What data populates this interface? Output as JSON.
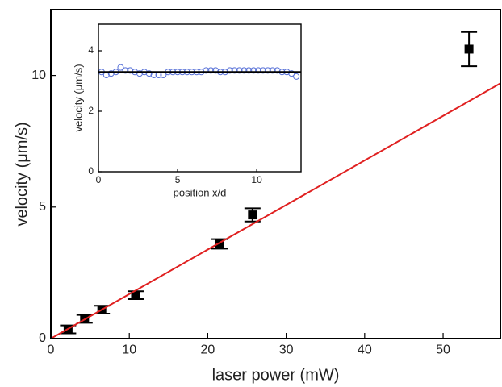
{
  "chart_data": [
    {
      "type": "scatter",
      "xlabel": "laser power (mW)",
      "ylabel": "velocity (μm/s)",
      "xlim": [
        0,
        57.3
      ],
      "ylim": [
        0,
        12.5
      ],
      "xticks": [
        0,
        10,
        20,
        30,
        40,
        50
      ],
      "yticks": [
        0,
        5,
        10
      ],
      "grid": false,
      "series": [
        {
          "color": "#000000",
          "marker": "square",
          "x": [
            2.2,
            4.3,
            6.5,
            10.8,
            21.5,
            25.7,
            53.3
          ],
          "values": [
            0.35,
            0.75,
            1.1,
            1.65,
            3.6,
            4.7,
            11.0
          ],
          "errors": [
            0.15,
            0.15,
            0.15,
            0.15,
            0.18,
            0.25,
            0.65
          ]
        },
        {
          "color": "#e02020",
          "line": true,
          "x": [
            0,
            57.3
          ],
          "values": [
            0,
            9.7
          ]
        }
      ]
    },
    {
      "type": "scatter",
      "xlabel": "position x/d",
      "ylabel": "velocity (μm/s)",
      "xlim": [
        0,
        12.8
      ],
      "ylim": [
        0,
        4.88
      ],
      "xticks": [
        0,
        5,
        10
      ],
      "yticks": [
        0,
        2,
        4
      ],
      "grid": false,
      "series": [
        {
          "color": "#5a73d8",
          "marker": "circle",
          "x": [
            0.2,
            0.5,
            0.8,
            1.1,
            1.4,
            1.7,
            2.0,
            2.3,
            2.6,
            2.9,
            3.2,
            3.5,
            3.8,
            4.1,
            4.4,
            4.7,
            5.0,
            5.3,
            5.6,
            5.9,
            6.2,
            6.5,
            6.8,
            7.1,
            7.4,
            7.7,
            8.0,
            8.3,
            8.6,
            8.9,
            9.2,
            9.5,
            9.8,
            10.1,
            10.4,
            10.7,
            11.0,
            11.3,
            11.6,
            11.9,
            12.2,
            12.5
          ],
          "values": [
            3.3,
            3.2,
            3.25,
            3.3,
            3.45,
            3.35,
            3.35,
            3.3,
            3.25,
            3.3,
            3.25,
            3.2,
            3.2,
            3.2,
            3.3,
            3.3,
            3.3,
            3.3,
            3.3,
            3.3,
            3.3,
            3.3,
            3.35,
            3.35,
            3.35,
            3.3,
            3.3,
            3.35,
            3.35,
            3.35,
            3.35,
            3.35,
            3.35,
            3.35,
            3.35,
            3.35,
            3.35,
            3.35,
            3.3,
            3.3,
            3.25,
            3.15
          ]
        },
        {
          "color": "#000000",
          "line": true,
          "x": [
            0,
            12.8
          ],
          "values": [
            3.3,
            3.3
          ]
        }
      ]
    }
  ]
}
